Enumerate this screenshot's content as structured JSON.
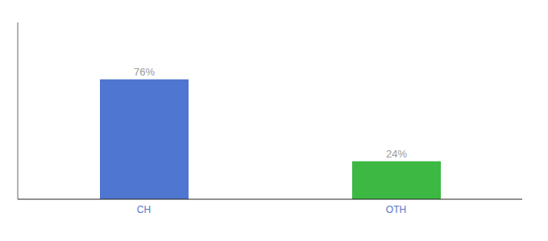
{
  "chart_data": {
    "type": "bar",
    "categories": [
      "CH",
      "OTH"
    ],
    "values": [
      76,
      24
    ],
    "value_labels": [
      "76%",
      "24%"
    ],
    "colors": [
      "#4f76d0",
      "#3cb843"
    ],
    "ylim": [
      0,
      112
    ],
    "data_labels": true,
    "tick_labels": "x",
    "grid": false
  }
}
